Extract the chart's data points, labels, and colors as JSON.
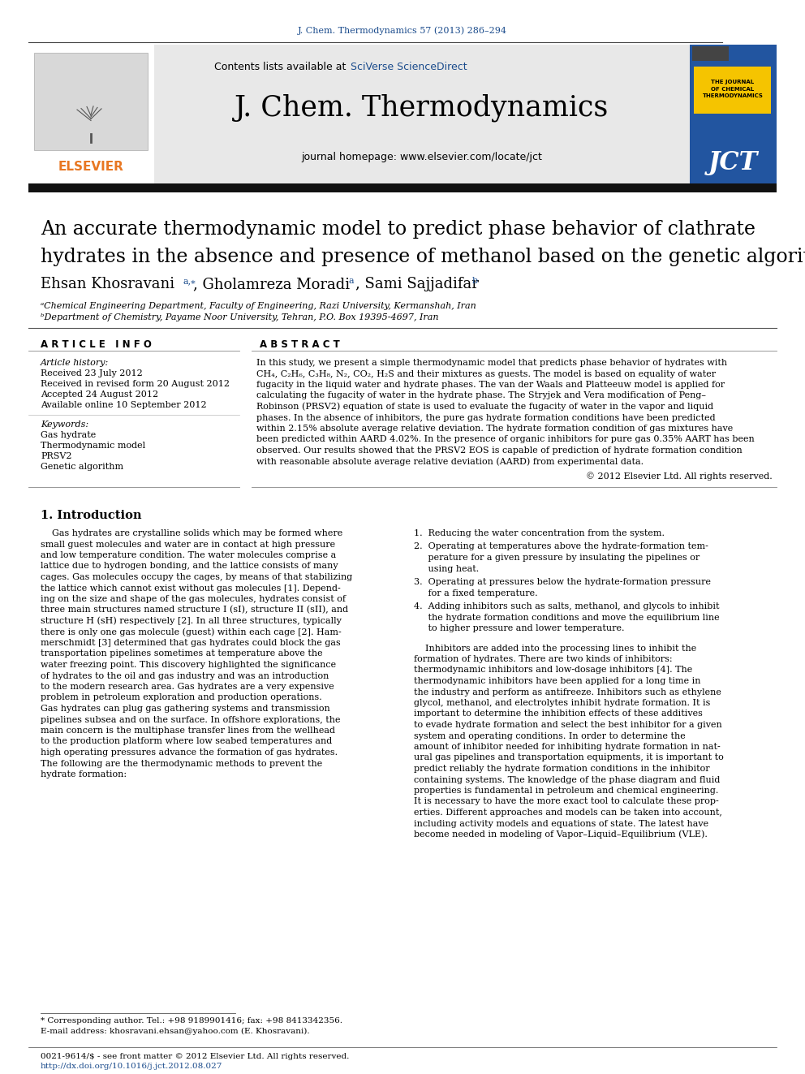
{
  "journal_ref": "J. Chem. Thermodynamics 57 (2013) 286–294",
  "journal_name": "J. Chem. Thermodynamics",
  "journal_homepage": "journal homepage: www.elsevier.com/locate/jct",
  "contents_text": "Contents lists available at ",
  "sciverse_text": "SciVerse ScienceDirect",
  "paper_title_line1": "An accurate thermodynamic model to predict phase behavior of clathrate",
  "paper_title_line2": "hydrates in the absence and presence of methanol based on the genetic algorithm",
  "author_main": "Ehsan Khosravani",
  "author_sup1": "a,⁎",
  "author2": ", Gholamreza Moradi",
  "author_sup2": "a",
  "author3": ", Sami Sajjadifar",
  "author_sup3": "b",
  "affil_a": "ᵃChemical Engineering Department, Faculty of Engineering, Razi University, Kermanshah, Iran",
  "affil_b": "ᵇDepartment of Chemistry, Payame Noor University, Tehran, P.O. Box 19395-4697, Iran",
  "article_info_header": "A R T I C L E   I N F O",
  "abstract_header": "A B S T R A C T",
  "article_history_label": "Article history:",
  "received": "Received 23 July 2012",
  "received_revised": "Received in revised form 20 August 2012",
  "accepted": "Accepted 24 August 2012",
  "available": "Available online 10 September 2012",
  "keywords_label": "Keywords:",
  "keywords": [
    "Gas hydrate",
    "Thermodynamic model",
    "PRSV2",
    "Genetic algorithm"
  ],
  "abstract_lines": [
    "In this study, we present a simple thermodynamic model that predicts phase behavior of hydrates with",
    "CH₄, C₂H₆, C₃H₈, N₂, CO₂, H₂S and their mixtures as guests. The model is based on equality of water",
    "fugacity in the liquid water and hydrate phases. The van der Waals and Platteeuw model is applied for",
    "calculating the fugacity of water in the hydrate phase. The Stryjek and Vera modification of Peng–",
    "Robinson (PRSV2) equation of state is used to evaluate the fugacity of water in the vapor and liquid",
    "phases. In the absence of inhibitors, the pure gas hydrate formation conditions have been predicted",
    "within 2.15% absolute average relative deviation. The hydrate formation condition of gas mixtures have",
    "been predicted within AARD 4.02%. In the presence of organic inhibitors for pure gas 0.35% AART has been",
    "observed. Our results showed that the PRSV2 EOS is capable of prediction of hydrate formation condition",
    "with reasonable absolute average relative deviation (AARD) from experimental data."
  ],
  "copyright": "© 2012 Elsevier Ltd. All rights reserved.",
  "intro_header": "1. Introduction",
  "intro_left_lines": [
    "    Gas hydrates are crystalline solids which may be formed where",
    "small guest molecules and water are in contact at high pressure",
    "and low temperature condition. The water molecules comprise a",
    "lattice due to hydrogen bonding, and the lattice consists of many",
    "cages. Gas molecules occupy the cages, by means of that stabilizing",
    "the lattice which cannot exist without gas molecules [1]. Depend-",
    "ing on the size and shape of the gas molecules, hydrates consist of",
    "three main structures named structure I (sI), structure II (sII), and",
    "structure H (sH) respectively [2]. In all three structures, typically",
    "there is only one gas molecule (guest) within each cage [2]. Ham-",
    "merschmidt [3] determined that gas hydrates could block the gas",
    "transportation pipelines sometimes at temperature above the",
    "water freezing point. This discovery highlighted the significance",
    "of hydrates to the oil and gas industry and was an introduction",
    "to the modern research area. Gas hydrates are a very expensive",
    "problem in petroleum exploration and production operations.",
    "Gas hydrates can plug gas gathering systems and transmission",
    "pipelines subsea and on the surface. In offshore explorations, the",
    "main concern is the multiphase transfer lines from the wellhead",
    "to the production platform where low seabed temperatures and",
    "high operating pressures advance the formation of gas hydrates.",
    "The following are the thermodynamic methods to prevent the",
    "hydrate formation:"
  ],
  "numbered_items": [
    [
      "1.  Reducing the water concentration from the system."
    ],
    [
      "2.  Operating at temperatures above the hydrate-formation tem-",
      "     perature for a given pressure by insulating the pipelines or",
      "     using heat."
    ],
    [
      "3.  Operating at pressures below the hydrate-formation pressure",
      "     for a fixed temperature."
    ],
    [
      "4.  Adding inhibitors such as salts, methanol, and glycols to inhibit",
      "     the hydrate formation conditions and move the equilibrium line",
      "     to higher pressure and lower temperature."
    ]
  ],
  "right_body_lines": [
    "    Inhibitors are added into the processing lines to inhibit the",
    "formation of hydrates. There are two kinds of inhibitors:",
    "thermodynamic inhibitors and low-dosage inhibitors [4]. The",
    "thermodynamic inhibitors have been applied for a long time in",
    "the industry and perform as antifreeze. Inhibitors such as ethylene",
    "glycol, methanol, and electrolytes inhibit hydrate formation. It is",
    "important to determine the inhibition effects of these additives",
    "to evade hydrate formation and select the best inhibitor for a given",
    "system and operating conditions. In order to determine the",
    "amount of inhibitor needed for inhibiting hydrate formation in nat-",
    "ural gas pipelines and transportation equipments, it is important to",
    "predict reliably the hydrate formation conditions in the inhibitor",
    "containing systems. The knowledge of the phase diagram and fluid",
    "properties is fundamental in petroleum and chemical engineering.",
    "It is necessary to have the more exact tool to calculate these prop-",
    "erties. Different approaches and models can be taken into account,",
    "including activity models and equations of state. The latest have",
    "become needed in modeling of Vapor–Liquid–Equilibrium (VLE)."
  ],
  "footnote_star": "* Corresponding author. Tel.: +98 9189901416; fax: +98 8413342356.",
  "footnote_email": "E-mail address: khosravani.ehsan@yahoo.com (E. Khosravani).",
  "issn_line": "0021-9614/$ - see front matter © 2012 Elsevier Ltd. All rights reserved.",
  "doi_line": "http://dx.doi.org/10.1016/j.jct.2012.08.027",
  "link_color": "#1a4b8c",
  "orange_color": "#e87722",
  "header_bg": "#e8e8e8",
  "dark_bar": "#111111",
  "jct_blue": "#2255a0",
  "jct_yellow": "#f5c400"
}
